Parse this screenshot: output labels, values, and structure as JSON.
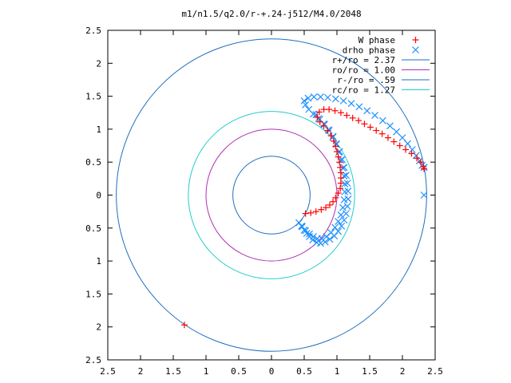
{
  "chart_data": {
    "type": "scatter",
    "title": "m1/n1.5/q2.0/r-+.24-j512/M4.0/2048",
    "xlabel": "",
    "ylabel": "",
    "xlim": [
      -2.5,
      2.5
    ],
    "ylim": [
      -2.5,
      2.5
    ],
    "grid": false,
    "legend_position": "top-right",
    "x_tick_labels": [
      "2.5",
      "2",
      "1.5",
      "1",
      "0.5",
      "0",
      "0.5",
      "1",
      "1.5",
      "2",
      "2.5"
    ],
    "y_tick_labels": [
      "2.5",
      "2",
      "1.5",
      "1",
      "0.5",
      "0",
      "0.5",
      "1",
      "1.5",
      "2",
      "2.5"
    ],
    "circles": [
      {
        "name": "r+/ro = 2.37",
        "radius": 2.37,
        "color": "#1f6fbf"
      },
      {
        "name": "ro/ro = 1.00",
        "radius": 1.0,
        "color": "#b030b0"
      },
      {
        "name": "r-/ro = .59",
        "radius": 0.59,
        "color": "#1f6fbf"
      },
      {
        "name": "rc/ro = 1.27",
        "radius": 1.27,
        "color": "#22cccc"
      }
    ],
    "series": [
      {
        "name": "W phase",
        "marker": "+",
        "color": "#ff0000",
        "points": [
          [
            -1.33,
            -1.97
          ],
          [
            0.52,
            -0.28
          ],
          [
            0.6,
            -0.27
          ],
          [
            0.68,
            -0.25
          ],
          [
            0.76,
            -0.22
          ],
          [
            0.83,
            -0.19
          ],
          [
            0.89,
            -0.15
          ],
          [
            0.94,
            -0.1
          ],
          [
            0.98,
            -0.04
          ],
          [
            1.02,
            0.03
          ],
          [
            1.05,
            0.1
          ],
          [
            1.06,
            0.18
          ],
          [
            1.06,
            0.26
          ],
          [
            1.06,
            0.34
          ],
          [
            1.05,
            0.42
          ],
          [
            1.04,
            0.5
          ],
          [
            1.02,
            0.58
          ],
          [
            1.0,
            0.66
          ],
          [
            0.98,
            0.74
          ],
          [
            0.95,
            0.82
          ],
          [
            0.91,
            0.9
          ],
          [
            0.86,
            0.98
          ],
          [
            0.8,
            1.05
          ],
          [
            0.74,
            1.11
          ],
          [
            0.7,
            1.18
          ],
          [
            0.73,
            1.26
          ],
          [
            0.8,
            1.3
          ],
          [
            0.88,
            1.3
          ],
          [
            0.97,
            1.28
          ],
          [
            1.06,
            1.25
          ],
          [
            1.15,
            1.21
          ],
          [
            1.24,
            1.17
          ],
          [
            1.33,
            1.13
          ],
          [
            1.42,
            1.08
          ],
          [
            1.51,
            1.03
          ],
          [
            1.6,
            0.98
          ],
          [
            1.69,
            0.93
          ],
          [
            1.78,
            0.87
          ],
          [
            1.87,
            0.81
          ],
          [
            1.96,
            0.75
          ],
          [
            2.05,
            0.69
          ],
          [
            2.14,
            0.63
          ],
          [
            2.22,
            0.56
          ],
          [
            2.28,
            0.5
          ],
          [
            2.32,
            0.43
          ],
          [
            2.33,
            0.4
          ]
        ]
      },
      {
        "name": "drho phase",
        "marker": "x",
        "color": "#1e90ff",
        "points": [
          [
            2.33,
            0.0
          ],
          [
            2.33,
            0.42
          ],
          [
            0.42,
            -0.42
          ],
          [
            0.46,
            -0.47
          ],
          [
            0.5,
            -0.53
          ],
          [
            0.54,
            -0.58
          ],
          [
            0.58,
            -0.63
          ],
          [
            0.63,
            -0.68
          ],
          [
            0.69,
            -0.72
          ],
          [
            0.75,
            -0.73
          ],
          [
            0.82,
            -0.71
          ],
          [
            0.89,
            -0.67
          ],
          [
            0.96,
            -0.62
          ],
          [
            1.02,
            -0.55
          ],
          [
            1.07,
            -0.47
          ],
          [
            1.11,
            -0.38
          ],
          [
            1.14,
            -0.28
          ],
          [
            1.16,
            -0.17
          ],
          [
            1.17,
            -0.06
          ],
          [
            1.17,
            0.06
          ],
          [
            1.16,
            0.18
          ],
          [
            1.14,
            0.3
          ],
          [
            1.11,
            0.42
          ],
          [
            1.08,
            0.54
          ],
          [
            1.04,
            0.66
          ],
          [
            0.99,
            0.78
          ],
          [
            0.94,
            0.89
          ],
          [
            0.87,
            0.99
          ],
          [
            0.8,
            1.08
          ],
          [
            0.72,
            1.16
          ],
          [
            0.64,
            1.23
          ],
          [
            0.57,
            1.3
          ],
          [
            0.52,
            1.37
          ],
          [
            0.5,
            1.43
          ],
          [
            0.56,
            1.47
          ],
          [
            0.65,
            1.49
          ],
          [
            0.75,
            1.49
          ],
          [
            0.86,
            1.48
          ],
          [
            0.98,
            1.46
          ],
          [
            1.1,
            1.43
          ],
          [
            1.22,
            1.39
          ],
          [
            1.34,
            1.34
          ],
          [
            1.46,
            1.28
          ],
          [
            1.58,
            1.21
          ],
          [
            1.7,
            1.13
          ],
          [
            1.81,
            1.05
          ],
          [
            1.91,
            0.96
          ],
          [
            2.0,
            0.87
          ],
          [
            2.08,
            0.78
          ],
          [
            2.15,
            0.69
          ],
          [
            2.21,
            0.6
          ],
          [
            2.26,
            0.52
          ],
          [
            2.3,
            0.45
          ],
          [
            2.33,
            0.42
          ],
          [
            0.68,
            1.22
          ],
          [
            0.74,
            1.15
          ],
          [
            0.81,
            1.07
          ],
          [
            0.88,
            0.98
          ],
          [
            0.94,
            0.88
          ],
          [
            0.99,
            0.77
          ],
          [
            1.03,
            0.65
          ],
          [
            1.06,
            0.53
          ],
          [
            1.09,
            0.41
          ],
          [
            1.11,
            0.29
          ],
          [
            1.12,
            0.17
          ],
          [
            1.12,
            0.05
          ],
          [
            1.11,
            -0.07
          ],
          [
            1.09,
            -0.19
          ],
          [
            1.06,
            -0.3
          ],
          [
            1.02,
            -0.4
          ],
          [
            0.97,
            -0.49
          ],
          [
            0.91,
            -0.57
          ],
          [
            0.84,
            -0.63
          ],
          [
            0.77,
            -0.66
          ],
          [
            0.7,
            -0.66
          ],
          [
            0.64,
            -0.63
          ],
          [
            0.58,
            -0.59
          ],
          [
            0.52,
            -0.54
          ],
          [
            0.47,
            -0.48
          ]
        ]
      }
    ]
  }
}
